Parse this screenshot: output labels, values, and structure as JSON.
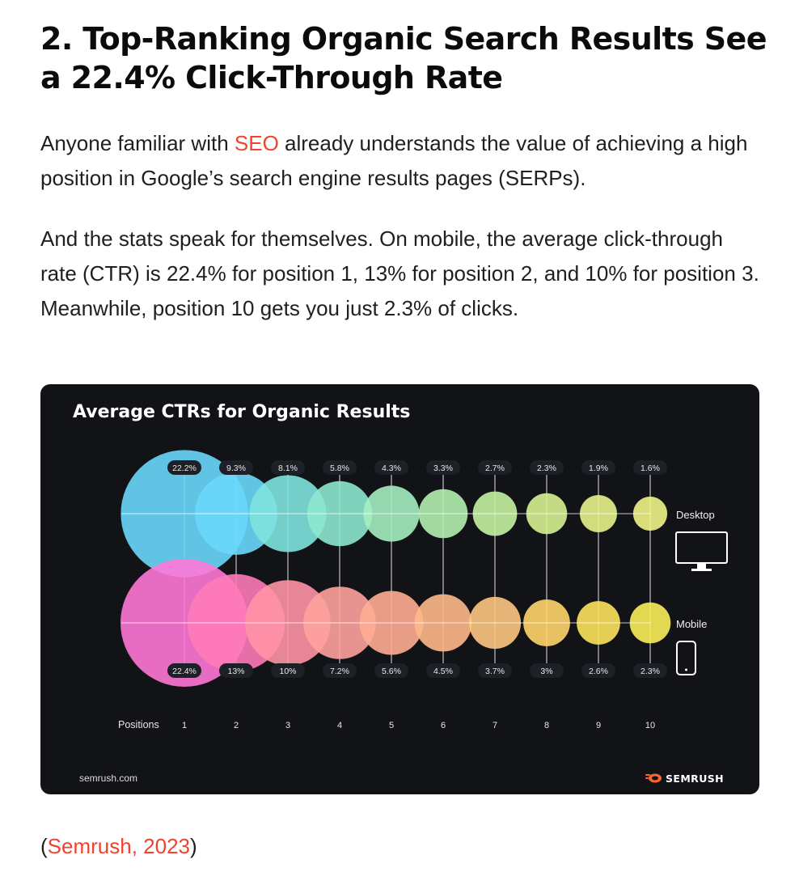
{
  "article": {
    "heading": "2. Top-Ranking Organic Search Results See a 22.4% Click-Through Rate",
    "p1_before": "Anyone familiar with ",
    "p1_link": "SEO",
    "p1_after": " already understands the value of achieving a high position in Google’s search engine results pages (SERPs).",
    "p2": "And the stats speak for themselves. On mobile, the average click-through rate (CTR) is 22.4% for position 1, 13% for position 2, and 10% for position 3. Meanwhile, position 10 gets you just 2.3% of clicks.",
    "source_open": "(",
    "source_link": "Semrush, 2023",
    "source_close": ")"
  },
  "chart_data": {
    "type": "scatter",
    "title": "Average CTRs for Organic Results",
    "xlabel": "Positions",
    "categories": [
      "1",
      "2",
      "3",
      "4",
      "5",
      "6",
      "7",
      "8",
      "9",
      "10"
    ],
    "series": [
      {
        "name": "Desktop",
        "values": [
          22.2,
          9.3,
          8.1,
          5.8,
          4.3,
          3.3,
          2.7,
          2.3,
          1.9,
          1.6
        ],
        "labels": [
          "22.2%",
          "9.3%",
          "8.1%",
          "5.8%",
          "4.3%",
          "3.3%",
          "2.7%",
          "2.3%",
          "1.9%",
          "1.6%"
        ],
        "colors": [
          "#6ad8fb",
          "#6ad8fb",
          "#7fe3dd",
          "#8ee8cf",
          "#a4eec0",
          "#b4f0b0",
          "#c6f2a0",
          "#d8f292",
          "#e6f38a",
          "#f0f487"
        ]
      },
      {
        "name": "Mobile",
        "values": [
          22.4,
          13,
          10,
          7.2,
          5.6,
          4.5,
          3.7,
          3,
          2.6,
          2.3
        ],
        "labels": [
          "22.4%",
          "13%",
          "10%",
          "7.2%",
          "5.6%",
          "4.5%",
          "3.7%",
          "3%",
          "2.6%",
          "2.3%"
        ],
        "colors": [
          "#ff78d6",
          "#ff7ab8",
          "#ff93a5",
          "#ffa29c",
          "#ffad92",
          "#ffb98a",
          "#ffc682",
          "#ffd56a",
          "#fde35c",
          "#fbee59"
        ]
      }
    ],
    "grid": true,
    "legend": "right",
    "footer_left": "semrush.com",
    "brand": "SEMRUSH",
    "brand_color": "#ff642d",
    "background": "#121317"
  }
}
